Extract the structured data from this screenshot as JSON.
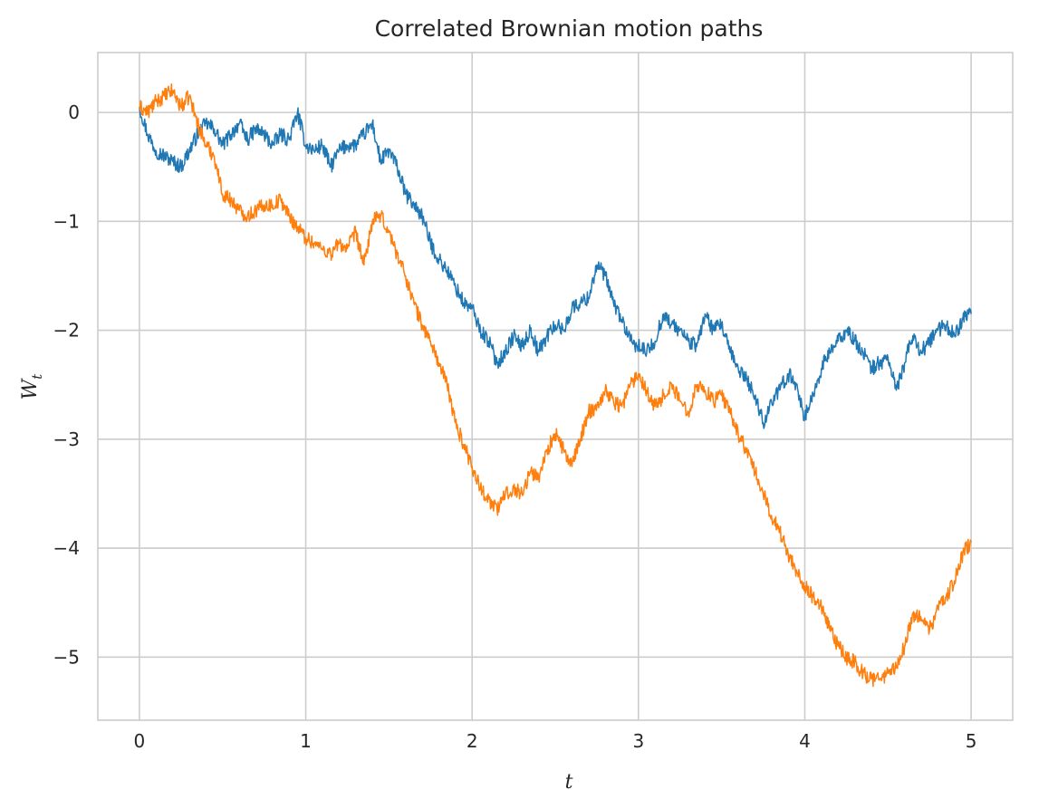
{
  "chart_data": {
    "type": "line",
    "title": "Correlated Brownian motion paths",
    "xlabel": "t",
    "ylabel": "W",
    "ylabel_subscript": "t",
    "xlim": [
      -0.25,
      5.25
    ],
    "ylim": [
      -5.58,
      0.55
    ],
    "xticks": [
      0,
      1,
      2,
      3,
      4,
      5
    ],
    "yticks": [
      0,
      -1,
      -2,
      -3,
      -4,
      -5
    ],
    "xtick_labels": [
      "0",
      "1",
      "2",
      "3",
      "4",
      "5"
    ],
    "ytick_labels": [
      "0",
      "−1",
      "−2",
      "−3",
      "−4",
      "−5"
    ],
    "grid": true,
    "series": [
      {
        "color": "#1f77b4",
        "x": [
          0,
          0.05,
          0.1,
          0.15,
          0.2,
          0.25,
          0.3,
          0.35,
          0.4,
          0.45,
          0.5,
          0.55,
          0.6,
          0.65,
          0.7,
          0.75,
          0.8,
          0.85,
          0.9,
          0.95,
          1.0,
          1.05,
          1.1,
          1.15,
          1.2,
          1.25,
          1.3,
          1.35,
          1.4,
          1.45,
          1.5,
          1.55,
          1.6,
          1.65,
          1.7,
          1.75,
          1.8,
          1.85,
          1.9,
          1.95,
          2.0,
          2.05,
          2.1,
          2.15,
          2.2,
          2.25,
          2.3,
          2.35,
          2.4,
          2.45,
          2.5,
          2.55,
          2.6,
          2.65,
          2.7,
          2.75,
          2.8,
          2.85,
          2.9,
          2.95,
          3.0,
          3.05,
          3.1,
          3.15,
          3.2,
          3.25,
          3.3,
          3.35,
          3.4,
          3.45,
          3.5,
          3.55,
          3.6,
          3.65,
          3.7,
          3.75,
          3.8,
          3.85,
          3.9,
          3.95,
          4.0,
          4.05,
          4.1,
          4.15,
          4.2,
          4.25,
          4.3,
          4.35,
          4.4,
          4.45,
          4.5,
          4.55,
          4.6,
          4.65,
          4.7,
          4.75,
          4.8,
          4.85,
          4.9,
          4.95,
          5.0
        ],
        "y": [
          0.05,
          -0.2,
          -0.35,
          -0.4,
          -0.45,
          -0.5,
          -0.35,
          -0.2,
          -0.1,
          -0.15,
          -0.3,
          -0.2,
          -0.1,
          -0.25,
          -0.15,
          -0.2,
          -0.3,
          -0.2,
          -0.25,
          0.0,
          -0.3,
          -0.35,
          -0.3,
          -0.5,
          -0.35,
          -0.3,
          -0.3,
          -0.2,
          -0.1,
          -0.45,
          -0.35,
          -0.5,
          -0.75,
          -0.85,
          -0.95,
          -1.2,
          -1.35,
          -1.45,
          -1.6,
          -1.75,
          -1.8,
          -2.0,
          -2.1,
          -2.3,
          -2.2,
          -2.05,
          -2.15,
          -2.0,
          -2.2,
          -2.05,
          -1.95,
          -2.0,
          -1.8,
          -1.75,
          -1.7,
          -1.4,
          -1.5,
          -1.75,
          -1.9,
          -2.1,
          -2.15,
          -2.2,
          -2.1,
          -1.85,
          -1.95,
          -2.0,
          -2.1,
          -2.15,
          -1.85,
          -2.0,
          -1.95,
          -2.2,
          -2.35,
          -2.45,
          -2.6,
          -2.85,
          -2.65,
          -2.55,
          -2.4,
          -2.5,
          -2.8,
          -2.6,
          -2.35,
          -2.2,
          -2.1,
          -2.0,
          -2.1,
          -2.2,
          -2.35,
          -2.3,
          -2.25,
          -2.55,
          -2.3,
          -2.05,
          -2.2,
          -2.1,
          -2.0,
          -1.95,
          -2.05,
          -1.9,
          -1.85
        ]
      },
      {
        "color": "#ff7f0e",
        "x": [
          0,
          0.05,
          0.1,
          0.15,
          0.2,
          0.25,
          0.3,
          0.35,
          0.4,
          0.45,
          0.5,
          0.55,
          0.6,
          0.65,
          0.7,
          0.75,
          0.8,
          0.85,
          0.9,
          0.95,
          1.0,
          1.05,
          1.1,
          1.15,
          1.2,
          1.25,
          1.3,
          1.35,
          1.4,
          1.45,
          1.5,
          1.55,
          1.6,
          1.65,
          1.7,
          1.75,
          1.8,
          1.85,
          1.9,
          1.95,
          2.0,
          2.05,
          2.1,
          2.15,
          2.2,
          2.25,
          2.3,
          2.35,
          2.4,
          2.45,
          2.5,
          2.55,
          2.6,
          2.65,
          2.7,
          2.75,
          2.8,
          2.85,
          2.9,
          2.95,
          3.0,
          3.05,
          3.1,
          3.15,
          3.2,
          3.25,
          3.3,
          3.35,
          3.4,
          3.45,
          3.5,
          3.55,
          3.6,
          3.65,
          3.7,
          3.75,
          3.8,
          3.85,
          3.9,
          3.95,
          4.0,
          4.05,
          4.1,
          4.15,
          4.2,
          4.25,
          4.3,
          4.35,
          4.4,
          4.45,
          4.5,
          4.55,
          4.6,
          4.65,
          4.7,
          4.75,
          4.8,
          4.85,
          4.9,
          4.95,
          5.0
        ],
        "y": [
          0.05,
          0.0,
          0.1,
          0.15,
          0.2,
          0.05,
          0.15,
          -0.1,
          -0.3,
          -0.4,
          -0.75,
          -0.8,
          -0.9,
          -0.95,
          -0.9,
          -0.85,
          -0.85,
          -0.8,
          -0.95,
          -1.05,
          -1.15,
          -1.2,
          -1.25,
          -1.3,
          -1.2,
          -1.25,
          -1.1,
          -1.4,
          -1.0,
          -0.95,
          -1.1,
          -1.3,
          -1.5,
          -1.75,
          -1.95,
          -2.1,
          -2.3,
          -2.5,
          -2.85,
          -3.05,
          -3.25,
          -3.45,
          -3.55,
          -3.65,
          -3.5,
          -3.45,
          -3.5,
          -3.3,
          -3.35,
          -3.1,
          -2.95,
          -3.1,
          -3.25,
          -3.0,
          -2.75,
          -2.7,
          -2.55,
          -2.65,
          -2.7,
          -2.5,
          -2.4,
          -2.55,
          -2.7,
          -2.6,
          -2.5,
          -2.65,
          -2.75,
          -2.5,
          -2.55,
          -2.65,
          -2.6,
          -2.75,
          -2.95,
          -3.1,
          -3.3,
          -3.5,
          -3.7,
          -3.85,
          -4.05,
          -4.2,
          -4.35,
          -4.45,
          -4.55,
          -4.75,
          -4.9,
          -5.0,
          -5.05,
          -5.15,
          -5.2,
          -5.2,
          -5.15,
          -5.1,
          -4.9,
          -4.6,
          -4.65,
          -4.75,
          -4.55,
          -4.45,
          -4.3,
          -4.05,
          -3.95
        ]
      }
    ]
  }
}
